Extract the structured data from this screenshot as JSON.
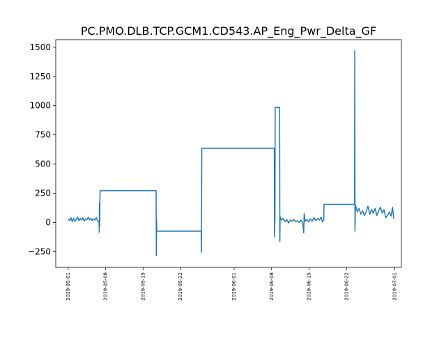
{
  "chart_data": {
    "type": "line",
    "title": "PC.PMO.DLB.TCP.GCM1.CD543.AP_Eng_Pwr_Delta_GF",
    "xlabel": "",
    "ylabel": "",
    "xlim": [
      "2019-04-28T16:00",
      "2019-07-02T06:00"
    ],
    "ylim": [
      -385,
      1565
    ],
    "grid": false,
    "x_tick_labels": [
      "2019-05-01",
      "2019-05-08",
      "2019-05-15",
      "2019-05-22",
      "2019-06-01",
      "2019-06-08",
      "2019-06-15",
      "2019-06-22",
      "2019-07-01"
    ],
    "y_ticks": [
      -250,
      0,
      250,
      500,
      750,
      1000,
      1250,
      1500
    ],
    "y_tick_labels": [
      "−250",
      "0",
      "250",
      "500",
      "750",
      "1000",
      "1250",
      "1500"
    ],
    "series": [
      {
        "color": "#1f77b4",
        "points": [
          [
            "2019-05-01T00:00",
            30
          ],
          [
            "2019-05-01T06:00",
            15
          ],
          [
            "2019-05-01T12:00",
            40
          ],
          [
            "2019-05-01T18:00",
            5
          ],
          [
            "2019-05-02T00:00",
            35
          ],
          [
            "2019-05-02T06:00",
            10
          ],
          [
            "2019-05-02T12:00",
            25
          ],
          [
            "2019-05-02T18:00",
            45
          ],
          [
            "2019-05-03T00:00",
            15
          ],
          [
            "2019-05-03T06:00",
            35
          ],
          [
            "2019-05-03T12:00",
            20
          ],
          [
            "2019-05-03T18:00",
            40
          ],
          [
            "2019-05-04T00:00",
            10
          ],
          [
            "2019-05-04T06:00",
            30
          ],
          [
            "2019-05-04T12:00",
            25
          ],
          [
            "2019-05-04T18:00",
            45
          ],
          [
            "2019-05-05T00:00",
            20
          ],
          [
            "2019-05-05T06:00",
            35
          ],
          [
            "2019-05-05T12:00",
            15
          ],
          [
            "2019-05-05T18:00",
            30
          ],
          [
            "2019-05-06T00:00",
            20
          ],
          [
            "2019-05-06T06:00",
            40
          ],
          [
            "2019-05-06T12:00",
            10
          ],
          [
            "2019-05-06T18:00",
            5
          ],
          [
            "2019-05-06T19:00",
            -85
          ],
          [
            "2019-05-06T20:00",
            170
          ],
          [
            "2019-05-06T21:00",
            -30
          ],
          [
            "2019-05-06T22:00",
            180
          ],
          [
            "2019-05-06T23:00",
            272
          ],
          [
            "2019-05-17T10:00",
            272
          ],
          [
            "2019-05-17T11:00",
            -285
          ],
          [
            "2019-05-17T12:00",
            30
          ],
          [
            "2019-05-17T13:00",
            -75
          ],
          [
            "2019-05-25T20:00",
            -75
          ],
          [
            "2019-05-25T21:00",
            -255
          ],
          [
            "2019-05-25T22:00",
            100
          ],
          [
            "2019-05-25T23:00",
            635
          ],
          [
            "2019-06-08T12:00",
            635
          ],
          [
            "2019-06-08T13:00",
            -125
          ],
          [
            "2019-06-08T15:00",
            40
          ],
          [
            "2019-06-08T16:00",
            985
          ],
          [
            "2019-06-09T12:00",
            985
          ],
          [
            "2019-06-09T13:00",
            -165
          ],
          [
            "2019-06-09T14:00",
            50
          ],
          [
            "2019-06-09T20:00",
            20
          ],
          [
            "2019-06-10T04:00",
            35
          ],
          [
            "2019-06-10T12:00",
            5
          ],
          [
            "2019-06-10T20:00",
            25
          ],
          [
            "2019-06-11T04:00",
            -5
          ],
          [
            "2019-06-11T12:00",
            20
          ],
          [
            "2019-06-11T20:00",
            10
          ],
          [
            "2019-06-12T04:00",
            25
          ],
          [
            "2019-06-12T12:00",
            5
          ],
          [
            "2019-06-12T20:00",
            15
          ],
          [
            "2019-06-13T04:00",
            0
          ],
          [
            "2019-06-13T12:00",
            20
          ],
          [
            "2019-06-13T20:00",
            -10
          ],
          [
            "2019-06-14T00:00",
            -90
          ],
          [
            "2019-06-14T02:00",
            75
          ],
          [
            "2019-06-14T06:00",
            10
          ],
          [
            "2019-06-14T14:00",
            25
          ],
          [
            "2019-06-14T22:00",
            5
          ],
          [
            "2019-06-15T06:00",
            30
          ],
          [
            "2019-06-15T14:00",
            10
          ],
          [
            "2019-06-15T22:00",
            40
          ],
          [
            "2019-06-16T06:00",
            15
          ],
          [
            "2019-06-16T14:00",
            35
          ],
          [
            "2019-06-16T22:00",
            20
          ],
          [
            "2019-06-17T06:00",
            45
          ],
          [
            "2019-06-17T12:00",
            5
          ],
          [
            "2019-06-17T18:00",
            20
          ],
          [
            "2019-06-17T19:00",
            155
          ],
          [
            "2019-06-23T12:00",
            155
          ],
          [
            "2019-06-23T13:00",
            1470
          ],
          [
            "2019-06-23T14:00",
            -75
          ],
          [
            "2019-06-23T16:00",
            150
          ],
          [
            "2019-06-24T00:00",
            90
          ],
          [
            "2019-06-24T08:00",
            120
          ],
          [
            "2019-06-24T16:00",
            70
          ],
          [
            "2019-06-25T00:00",
            100
          ],
          [
            "2019-06-25T08:00",
            60
          ],
          [
            "2019-06-25T16:00",
            90
          ],
          [
            "2019-06-26T00:00",
            140
          ],
          [
            "2019-06-26T08:00",
            70
          ],
          [
            "2019-06-26T16:00",
            110
          ],
          [
            "2019-06-27T00:00",
            80
          ],
          [
            "2019-06-27T08:00",
            120
          ],
          [
            "2019-06-27T16:00",
            60
          ],
          [
            "2019-06-28T00:00",
            100
          ],
          [
            "2019-06-28T08:00",
            130
          ],
          [
            "2019-06-28T16:00",
            80
          ],
          [
            "2019-06-29T00:00",
            110
          ],
          [
            "2019-06-29T08:00",
            40
          ],
          [
            "2019-06-29T16:00",
            60
          ],
          [
            "2019-06-30T00:00",
            90
          ],
          [
            "2019-06-30T08:00",
            55
          ],
          [
            "2019-06-30T14:00",
            130
          ],
          [
            "2019-06-30T20:00",
            30
          ]
        ]
      }
    ]
  }
}
